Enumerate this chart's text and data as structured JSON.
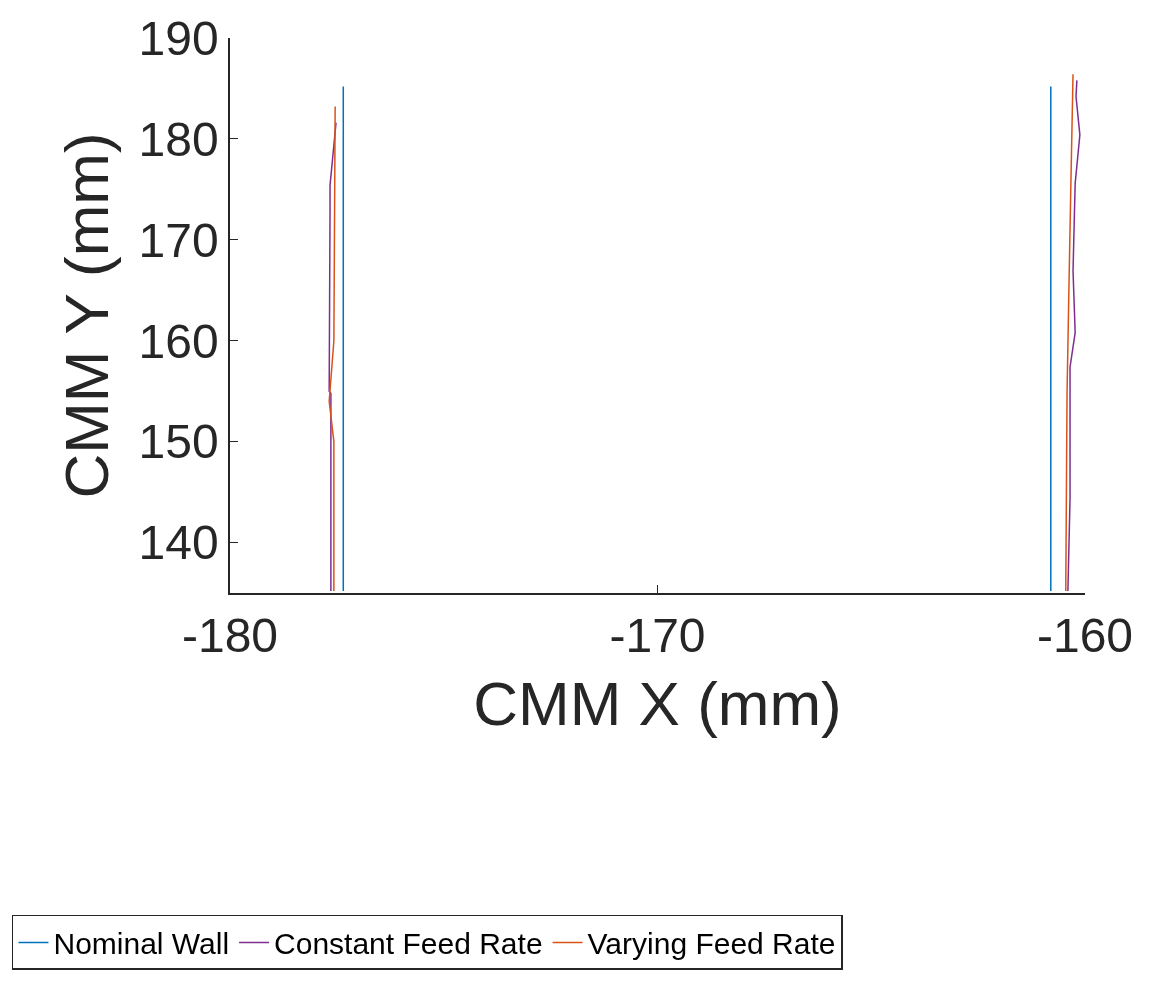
{
  "chart_data": {
    "type": "line",
    "xlabel": "CMM X (mm)",
    "ylabel": "CMM Y (mm)",
    "xlim": [
      -180,
      -160
    ],
    "xticks": [
      -180,
      -170,
      -160
    ],
    "ylim": [
      135,
      190
    ],
    "yticks": [
      140,
      150,
      160,
      170,
      180,
      190
    ],
    "legend": "bottom",
    "line_style": "solid",
    "marker": "none",
    "series": [
      {
        "name": "Nominal Wall",
        "color": "#0072bd",
        "x": [
          -177.35,
          -177.35,
          null,
          -160.8,
          -160.8
        ],
        "values": [
          135.2,
          185.2,
          null,
          135.2,
          185.2
        ]
      },
      {
        "name": "Constant Feed Rate",
        "color": "#7e2f8e",
        "x": [
          -177.64,
          -177.64,
          -177.68,
          -177.66,
          -177.66,
          -177.52,
          null,
          -160.4,
          -160.35,
          -160.35,
          -160.23,
          -160.28,
          -160.23,
          -160.12,
          -160.21,
          -160.19
        ],
        "values": [
          135.2,
          154.8,
          155.0,
          173.0,
          175.4,
          181.6,
          null,
          135.2,
          144.4,
          157.4,
          160.8,
          166.9,
          175.6,
          180.4,
          184.2,
          185.8
        ]
      },
      {
        "name": "Varying Feed Rate",
        "color": "#d95319",
        "x": [
          -177.57,
          -177.57,
          -177.68,
          -177.57,
          -177.54,
          null,
          -160.45,
          -160.42,
          -160.38,
          -160.33,
          -160.28
        ],
        "values": [
          135.2,
          150.0,
          154.0,
          160.0,
          183.2,
          null,
          135.2,
          154.8,
          164.3,
          175.6,
          186.4
        ]
      }
    ]
  }
}
